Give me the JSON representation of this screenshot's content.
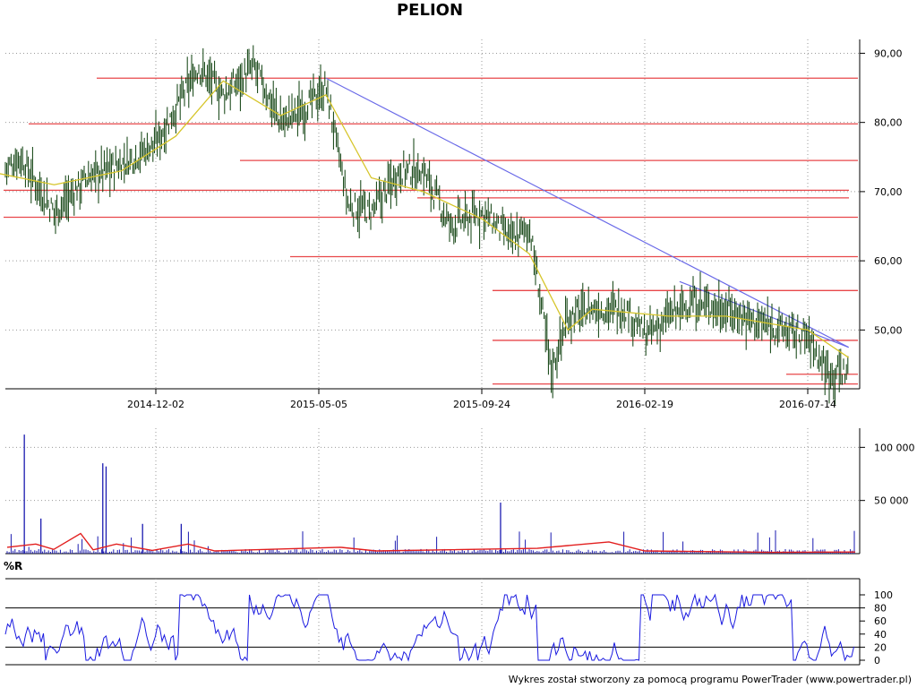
{
  "title": "PELION",
  "footer": "Wykres został stworzony za pomocą programu PowerTrader (www.powertrader.pl)",
  "colors": {
    "price_bars": "#0a3d0a",
    "moving_average": "#d6c52a",
    "support_resistance": "#e8474a",
    "trendline": "#6a6ae8",
    "volume_bars": "#1a1ab0",
    "volume_average": "#e21e1e",
    "williams_r": "#1a1ae0"
  },
  "chart_data": [
    {
      "type": "candlestick",
      "panel": "price",
      "title": "PELION",
      "x_tick_labels": [
        "2014-12-02",
        "2015-05-05",
        "2015-09-24",
        "2016-02-19",
        "2016-07-14"
      ],
      "y_tick_labels": [
        "90,00",
        "80,00",
        "70,00",
        "60,00",
        "50,00"
      ],
      "ylim": [
        41.5,
        92.0
      ],
      "grid": true,
      "series": [
        {
          "kind": "close",
          "x": [
            "2014-07-01",
            "2014-08-01",
            "2014-09-01",
            "2014-10-01",
            "2014-11-01",
            "2014-12-02",
            "2014-12-20",
            "2015-01-10",
            "2015-02-01",
            "2015-03-01",
            "2015-03-25",
            "2015-04-15",
            "2015-05-05",
            "2015-05-25",
            "2015-06-15",
            "2015-07-10",
            "2015-08-01",
            "2015-08-25",
            "2015-09-24",
            "2015-10-20",
            "2015-11-05",
            "2015-11-25",
            "2015-12-10",
            "2016-01-01",
            "2016-02-01",
            "2016-02-19",
            "2016-03-10",
            "2016-04-01",
            "2016-05-01",
            "2016-06-01",
            "2016-07-14",
            "2016-08-01",
            "2016-08-20"
          ],
          "y": [
            71,
            75,
            67,
            72,
            74,
            77,
            82,
            88,
            84,
            88,
            80,
            82,
            85,
            68,
            67,
            73,
            73,
            65,
            67,
            63,
            65,
            44,
            52,
            53,
            53,
            49,
            52,
            54,
            53,
            51,
            49,
            44,
            44
          ]
        },
        {
          "kind": "moving_average",
          "x": [
            "2014-07-01",
            "2014-09-01",
            "2014-11-01",
            "2014-12-20",
            "2015-02-01",
            "2015-03-25",
            "2015-05-05",
            "2015-06-15",
            "2015-08-01",
            "2015-09-24",
            "2015-11-05",
            "2015-12-10",
            "2016-01-01",
            "2016-03-10",
            "2016-05-01",
            "2016-07-14",
            "2016-08-20"
          ],
          "y": [
            73,
            71,
            73,
            78,
            86,
            81,
            84,
            72,
            70,
            66,
            61,
            50,
            53,
            52,
            52,
            50,
            46
          ]
        }
      ],
      "horizontal_levels": [
        86.4,
        79.8,
        74.5,
        70.2,
        69.1,
        66.3,
        60.6,
        55.7,
        48.5,
        43.6,
        42.2
      ],
      "trendlines": [
        {
          "from": [
            "2015-05-05",
            86.4
          ],
          "to": [
            "2016-08-20",
            47.5
          ]
        },
        {
          "from": [
            "2016-03-20",
            57.0
          ],
          "to": [
            "2016-08-20",
            47.5
          ]
        }
      ]
    },
    {
      "type": "bar",
      "panel": "volume",
      "y_tick_labels": [
        "100 000",
        "50 000"
      ],
      "ylim": [
        0,
        118000
      ],
      "grid": true,
      "spikes": [
        {
          "date": "2014-08-05",
          "value": 112000
        },
        {
          "date": "2014-08-20",
          "value": 33000
        },
        {
          "date": "2014-10-15",
          "value": 85000
        },
        {
          "date": "2014-10-18",
          "value": 82000
        },
        {
          "date": "2014-11-20",
          "value": 28000
        },
        {
          "date": "2014-12-25",
          "value": 28000
        },
        {
          "date": "2015-10-10",
          "value": 48000
        }
      ],
      "average_line": true
    },
    {
      "type": "line",
      "panel": "indicator",
      "label": "%R",
      "y_tick_labels": [
        "100",
        "80",
        "60",
        "40",
        "20",
        "0"
      ],
      "ylim": [
        0,
        100
      ],
      "reference_levels": [
        80,
        20
      ]
    }
  ]
}
